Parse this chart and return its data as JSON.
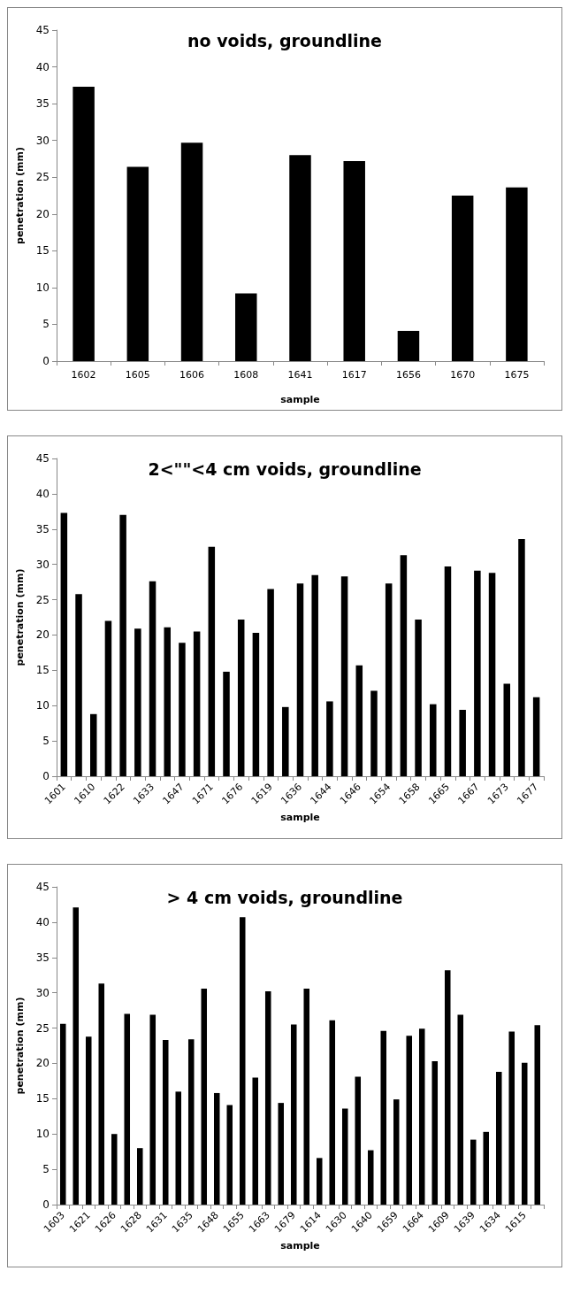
{
  "chart_data": [
    {
      "type": "bar",
      "title": "no voids, groundline",
      "xlabel": "sample",
      "ylabel": "penetration (mm)",
      "color": "#000000",
      "ylim": [
        0,
        45
      ],
      "yticks": [
        0,
        5,
        10,
        15,
        20,
        25,
        30,
        35,
        40,
        45
      ],
      "categories": [
        "1602",
        "1605",
        "1606",
        "1608",
        "1641",
        "1617",
        "1656",
        "1670",
        "1675"
      ],
      "values": [
        37.3,
        26.4,
        29.7,
        9.2,
        28.0,
        27.2,
        4.1,
        22.5,
        23.6
      ]
    },
    {
      "type": "bar",
      "title": "2<\"\"<4 cm voids, groundline",
      "xlabel": "sample",
      "ylabel": "penetration (mm)",
      "color": "#000000",
      "ylim": [
        0,
        45
      ],
      "yticks": [
        0,
        5,
        10,
        15,
        20,
        25,
        30,
        35,
        40,
        45
      ],
      "categories": [
        "1601",
        null,
        "1610",
        null,
        "1622",
        null,
        "1633",
        null,
        "1647",
        null,
        "1671",
        null,
        "1676",
        null,
        "1619",
        null,
        "1636",
        null,
        "1644",
        null,
        "1646",
        null,
        "1654",
        null,
        "1658",
        null,
        "1665",
        null,
        "1667",
        null,
        "1673",
        null,
        "1677"
      ],
      "values": [
        37.3,
        25.8,
        8.8,
        22.0,
        37.0,
        20.9,
        27.6,
        21.1,
        18.9,
        20.5,
        32.5,
        14.8,
        22.2,
        20.3,
        26.5,
        9.8,
        27.3,
        28.5,
        10.6,
        28.3,
        15.7,
        12.1,
        27.3,
        31.3,
        22.2,
        10.2,
        29.7,
        9.4,
        29.1,
        28.8,
        13.1,
        33.6,
        11.2
      ]
    },
    {
      "type": "bar",
      "title": "> 4 cm voids, groundline",
      "xlabel": "sample",
      "ylabel": "penetration (mm)",
      "color": "#000000",
      "ylim": [
        0,
        45
      ],
      "yticks": [
        0,
        5,
        10,
        15,
        20,
        25,
        30,
        35,
        40,
        45
      ],
      "categories": [
        "1603",
        null,
        "1621",
        null,
        "1626",
        null,
        "1628",
        null,
        "1631",
        null,
        "1635",
        null,
        "1648",
        null,
        "1655",
        null,
        "1663",
        null,
        "1679",
        null,
        "1614",
        null,
        "1630",
        null,
        "1640",
        null,
        "1659",
        null,
        "1664",
        null,
        "1609",
        null,
        "1639",
        null,
        "1634",
        null,
        "1615",
        null
      ],
      "values": [
        25.6,
        42.1,
        23.8,
        31.3,
        10.0,
        27.0,
        8.0,
        26.9,
        23.3,
        16.0,
        23.4,
        30.6,
        15.8,
        14.1,
        40.7,
        18.0,
        30.2,
        14.4,
        25.5,
        30.6,
        6.6,
        26.1,
        13.6,
        18.1,
        7.7,
        24.6,
        14.9,
        23.9,
        24.9,
        20.3,
        33.2,
        26.9,
        9.2,
        10.3,
        18.8,
        24.5,
        20.1,
        25.4
      ]
    }
  ]
}
